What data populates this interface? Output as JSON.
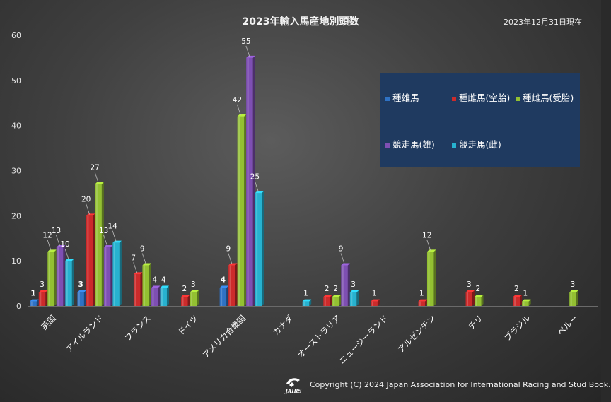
{
  "chart_data": {
    "type": "bar",
    "title": "2023年輸入馬産地別頭数",
    "subtitle": "2023年12月31日現在",
    "categories": [
      "英国",
      "アイルランド",
      "フランス",
      "ドイツ",
      "アメリカ合衆国",
      "カナダ",
      "オーストラリア",
      "ニュージーランド",
      "アルゼンチン",
      "チリ",
      "ブラジル",
      "ペルー"
    ],
    "series": [
      {
        "name": "種雄馬",
        "color": "#2f72c4",
        "values": [
          1,
          3,
          null,
          null,
          4,
          null,
          null,
          null,
          null,
          null,
          null,
          null
        ]
      },
      {
        "name": "種雌馬(空胎)",
        "color": "#cc2b2b",
        "values": [
          3,
          20,
          7,
          2,
          9,
          null,
          2,
          1,
          1,
          3,
          2,
          null
        ]
      },
      {
        "name": "種雌馬(受胎)",
        "color": "#93c032",
        "values": [
          12,
          27,
          9,
          3,
          42,
          null,
          2,
          null,
          12,
          2,
          1,
          3
        ]
      },
      {
        "name": "競走馬(雄)",
        "color": "#7e4fb3",
        "values": [
          13,
          13,
          4,
          null,
          55,
          null,
          9,
          null,
          null,
          null,
          null,
          null
        ]
      },
      {
        "name": "競走馬(雌)",
        "color": "#27b2d0",
        "values": [
          10,
          14,
          4,
          null,
          25,
          1,
          3,
          null,
          null,
          null,
          null,
          null
        ]
      }
    ],
    "y_ticks": [
      "0",
      "10",
      "20",
      "30",
      "40",
      "50",
      "60"
    ],
    "ylim": [
      0,
      60
    ],
    "grid": false,
    "legend_position": "top-right"
  },
  "footer": {
    "copyright": "Copyright (C) 2024 Japan Association for International Racing and Stud Book.",
    "logo_text": "JAIRS"
  }
}
